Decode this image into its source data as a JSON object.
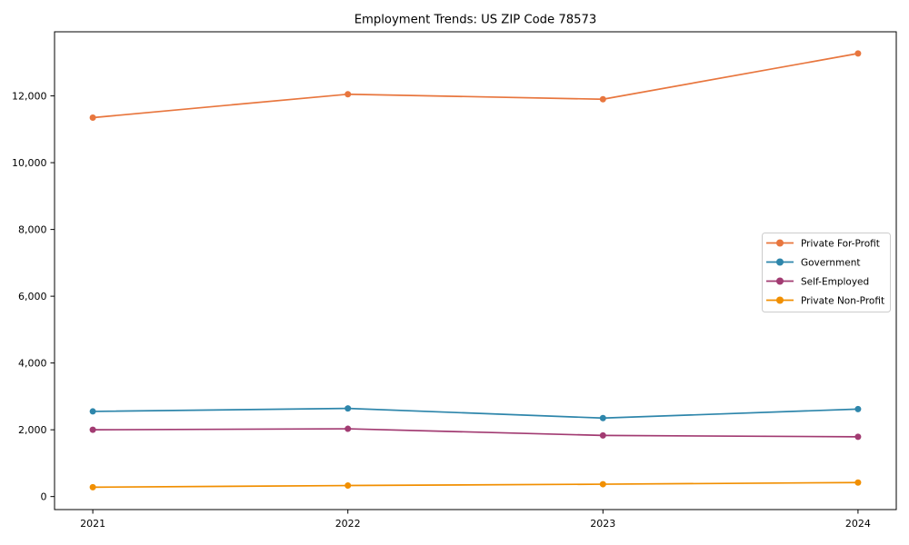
{
  "chart_data": {
    "type": "line",
    "title": "Employment Trends: US ZIP Code 78573",
    "xlabel": "",
    "ylabel": "",
    "x": [
      2021,
      2022,
      2023,
      2024
    ],
    "x_tick_labels": [
      "2021",
      "2022",
      "2023",
      "2024"
    ],
    "yticks": [
      0,
      2000,
      4000,
      6000,
      8000,
      10000,
      12000
    ],
    "ytick_labels": [
      "0",
      "2,000",
      "4,000",
      "6,000",
      "8,000",
      "10,000",
      "12,000"
    ],
    "xlim": [
      2020.85,
      2024.15
    ],
    "ylim": [
      -390,
      13920
    ],
    "grid": false,
    "legend": {
      "visible": true,
      "position": "center-right",
      "border_color": "#cccccc",
      "background_color": "#ffffff"
    },
    "series": [
      {
        "name": "Private For-Profit",
        "color": "#e8763e",
        "values": [
          11350,
          12050,
          11900,
          13270
        ]
      },
      {
        "name": "Government",
        "color": "#2e86ab",
        "values": [
          2550,
          2640,
          2350,
          2620
        ]
      },
      {
        "name": "Self-Employed",
        "color": "#a23b72",
        "values": [
          2000,
          2030,
          1830,
          1790
        ]
      },
      {
        "name": "Private Non-Profit",
        "color": "#f18f01",
        "values": [
          280,
          330,
          370,
          420
        ]
      }
    ],
    "axis_color": "#000000",
    "marker": "circle"
  }
}
